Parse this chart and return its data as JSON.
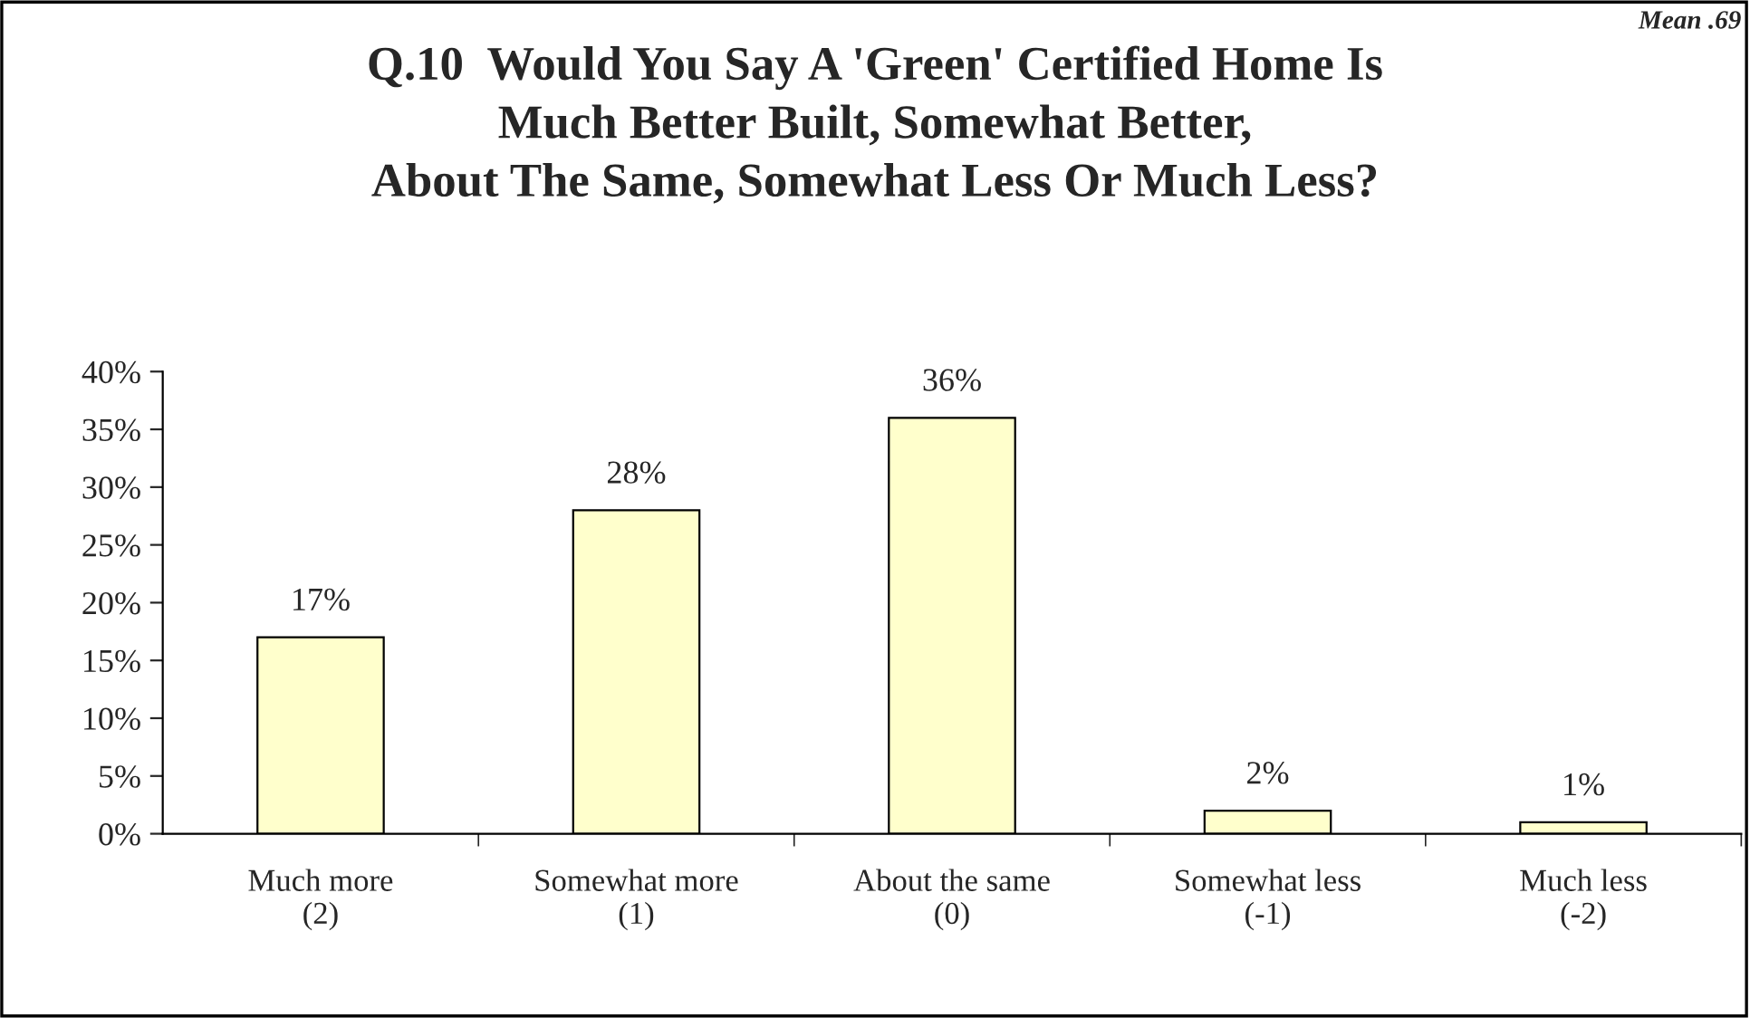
{
  "chart_data": {
    "type": "bar",
    "title": "Q.10  Would You Say A 'Green' Certified Home Is\nMuch Better Built, Somewhat Better,\nAbout The Same, Somewhat Less Or Much Less?",
    "annotations": [
      "Mean .69"
    ],
    "categories": [
      "Much more\n(2)",
      "Somewhat more\n(1)",
      "About the same\n(0)",
      "Somewhat less\n(-1)",
      "Much less\n(-2)"
    ],
    "values": [
      17,
      28,
      36,
      2,
      1
    ],
    "value_labels": [
      "17%",
      "28%",
      "36%",
      "2%",
      "1%"
    ],
    "color": "#ffffcc",
    "ylim": [
      0,
      40
    ],
    "yticks": [
      {
        "value": 0,
        "label": "0%"
      },
      {
        "value": 5,
        "label": "5%"
      },
      {
        "value": 10,
        "label": "10%"
      },
      {
        "value": 15,
        "label": "15%"
      },
      {
        "value": 20,
        "label": "20%"
      },
      {
        "value": 25,
        "label": "25%"
      },
      {
        "value": 30,
        "label": "30%"
      },
      {
        "value": 35,
        "label": "35%"
      },
      {
        "value": 40,
        "label": "40%"
      }
    ],
    "grid": false,
    "legend": false
  }
}
